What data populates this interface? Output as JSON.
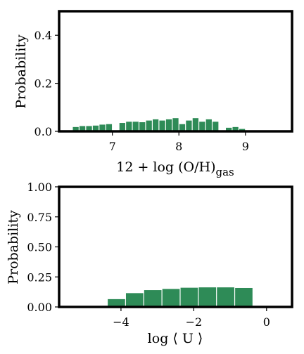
{
  "bar_color": "#2e8b57",
  "chart_data": [
    {
      "type": "bar",
      "title": "",
      "xlabel": "12 + log (O/H)",
      "xlabel_sub": "gas",
      "ylabel": "Probability",
      "xlim": [
        6.2,
        9.7
      ],
      "ylim": [
        0.0,
        0.5
      ],
      "xticks": [
        7,
        8,
        9
      ],
      "xtick_labels": [
        "7",
        "8",
        "9"
      ],
      "yticks": [
        0.0,
        0.2,
        0.4
      ],
      "ytick_labels": [
        "0.0",
        "0.2",
        "0.4"
      ],
      "bin_width": 0.1,
      "bins_left": [
        6.4,
        6.5,
        6.6,
        6.7,
        6.8,
        6.9,
        7.0,
        7.1,
        7.2,
        7.3,
        7.4,
        7.5,
        7.6,
        7.7,
        7.8,
        7.9,
        8.0,
        8.1,
        8.2,
        8.3,
        8.4,
        8.5,
        8.6,
        8.7,
        8.8,
        8.9
      ],
      "values": [
        0.018,
        0.022,
        0.022,
        0.024,
        0.028,
        0.03,
        0.0,
        0.035,
        0.04,
        0.04,
        0.038,
        0.045,
        0.05,
        0.045,
        0.05,
        0.055,
        0.03,
        0.045,
        0.055,
        0.04,
        0.05,
        0.04,
        0.0,
        0.015,
        0.018,
        0.01
      ]
    },
    {
      "type": "bar",
      "title": "",
      "xlabel": "log ⟨ U ⟩",
      "ylabel": "Probability",
      "xlim": [
        -5.7,
        0.7
      ],
      "ylim": [
        0.0,
        1.0
      ],
      "xticks": [
        -4,
        -2,
        0
      ],
      "xtick_labels": [
        "−4",
        "−2",
        "0"
      ],
      "yticks": [
        0.0,
        0.25,
        0.5,
        0.75,
        1.0
      ],
      "ytick_labels": [
        "0.00",
        "0.25",
        "0.50",
        "0.75",
        "1.00"
      ],
      "bin_width": 0.5,
      "bins_left": [
        -4.375,
        -3.875,
        -3.375,
        -2.875,
        -2.375,
        -1.875,
        -1.375,
        -0.875
      ],
      "values": [
        0.065,
        0.115,
        0.14,
        0.15,
        0.16,
        0.163,
        0.163,
        0.158
      ]
    }
  ]
}
